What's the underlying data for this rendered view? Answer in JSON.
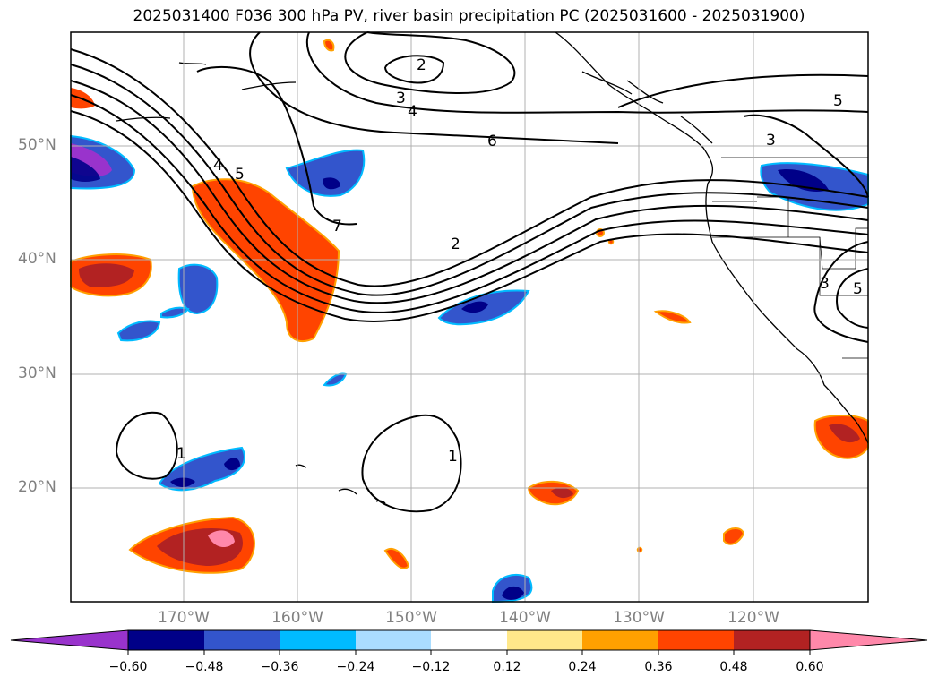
{
  "title": "2025031400 F036 300 hPa PV, river basin precipitation PC (2025031600 - 2025031900)",
  "map": {
    "lat_labels": [
      "50°N",
      "40°N",
      "30°N",
      "20°N"
    ],
    "lon_labels": [
      "170°W",
      "160°W",
      "150°W",
      "140°W",
      "130°W",
      "120°W"
    ],
    "pv_contour_labels": [
      "2",
      "3",
      "4",
      "6",
      "5",
      "3",
      "4",
      "5",
      "7",
      "2",
      "3",
      "5",
      "1",
      "1"
    ],
    "colorbar": {
      "tick_labels": [
        "−0.60",
        "−0.48",
        "−0.36",
        "−0.24",
        "−0.12",
        "0.12",
        "0.24",
        "0.36",
        "0.48",
        "0.60"
      ],
      "colors": [
        "#9933cc",
        "#000088",
        "#3355cc",
        "#00bbff",
        "#aaddff",
        "#ffffff",
        "#ffe88a",
        "#ffa000",
        "#ff4400",
        "#b22222",
        "#ff88aa"
      ]
    }
  }
}
